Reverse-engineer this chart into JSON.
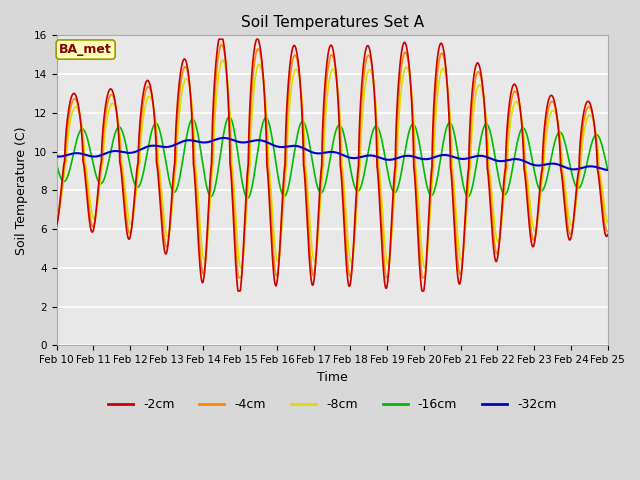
{
  "title": "Soil Temperatures Set A",
  "xlabel": "Time",
  "ylabel": "Soil Temperature (C)",
  "annotation": "BA_met",
  "ylim": [
    0,
    16
  ],
  "xlim": [
    0,
    15
  ],
  "fig_bg": "#d8d8d8",
  "plot_bg": "#e8e8e8",
  "grid_color": "white",
  "tick_labels": [
    "Feb 10",
    "Feb 11",
    "Feb 12",
    "Feb 13",
    "Feb 14",
    "Feb 15",
    "Feb 16",
    "Feb 17",
    "Feb 18",
    "Feb 19",
    "Feb 20",
    "Feb 21",
    "Feb 22",
    "Feb 23",
    "Feb 24",
    "Feb 25"
  ],
  "series_colors": {
    "-2cm": "#cc0000",
    "-4cm": "#ff8800",
    "-8cm": "#dddd00",
    "-16cm": "#00bb00",
    "-32cm": "#0000cc"
  },
  "lw": 1.2,
  "title_fontsize": 11,
  "axis_fontsize": 9,
  "tick_fontsize": 7.5,
  "legend_fontsize": 9
}
